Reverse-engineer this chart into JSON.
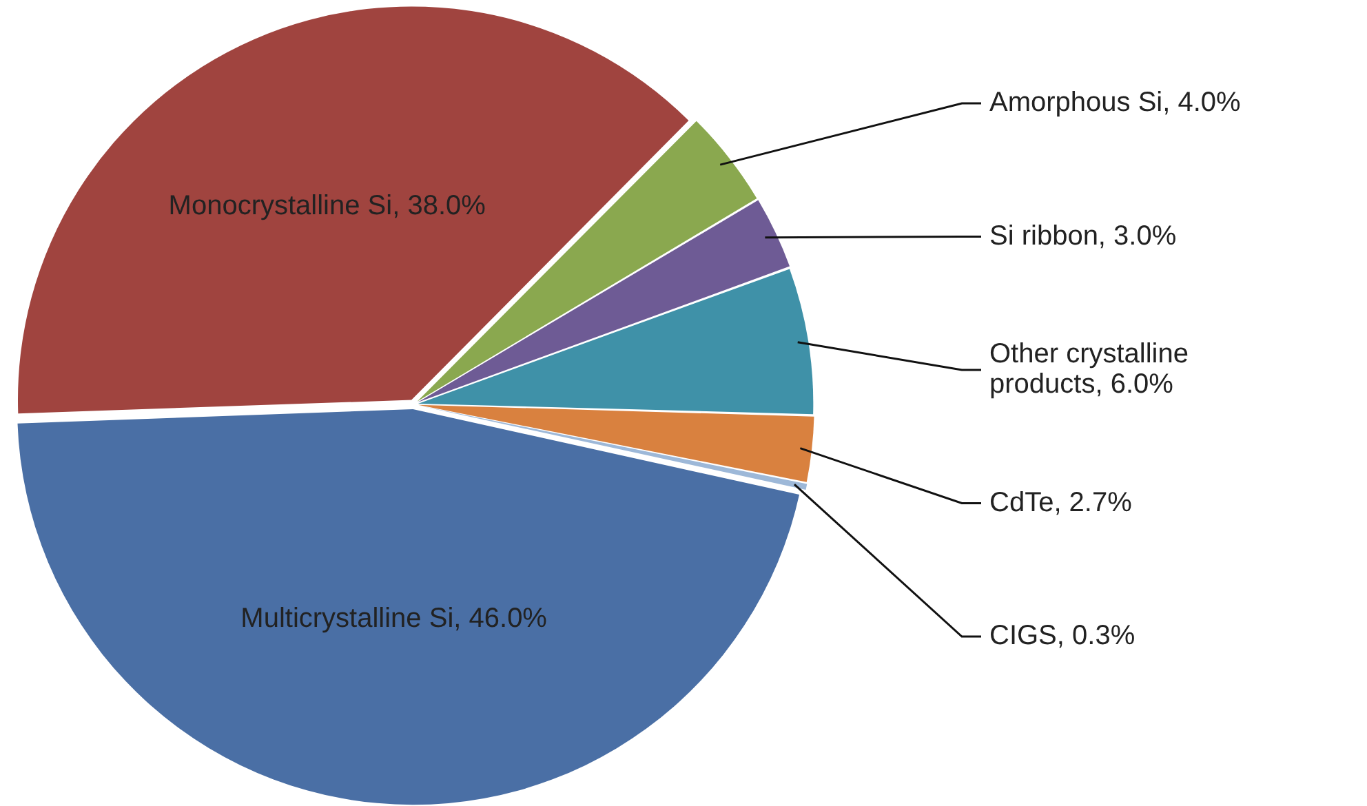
{
  "chart_data": {
    "type": "pie",
    "categories": [
      "Monocrystalline Si",
      "Amorphous Si",
      "Si ribbon",
      "Other crystalline products",
      "CdTe",
      "CIGS",
      "Multicrystalline Si"
    ],
    "values": [
      38.0,
      4.0,
      3.0,
      6.0,
      2.7,
      0.3,
      46.0
    ],
    "colors": [
      "#a0443f",
      "#8aa84f",
      "#6e5b95",
      "#3f91a8",
      "#d9813f",
      "#9db8d8",
      "#4a6fa5"
    ],
    "value_labels": [
      ", 38.0%",
      ", 4.0%",
      ", 3.0%",
      ", 6.0%",
      ", 2.7%",
      ", 0.3%",
      ", 46.0%"
    ],
    "legend": false
  }
}
